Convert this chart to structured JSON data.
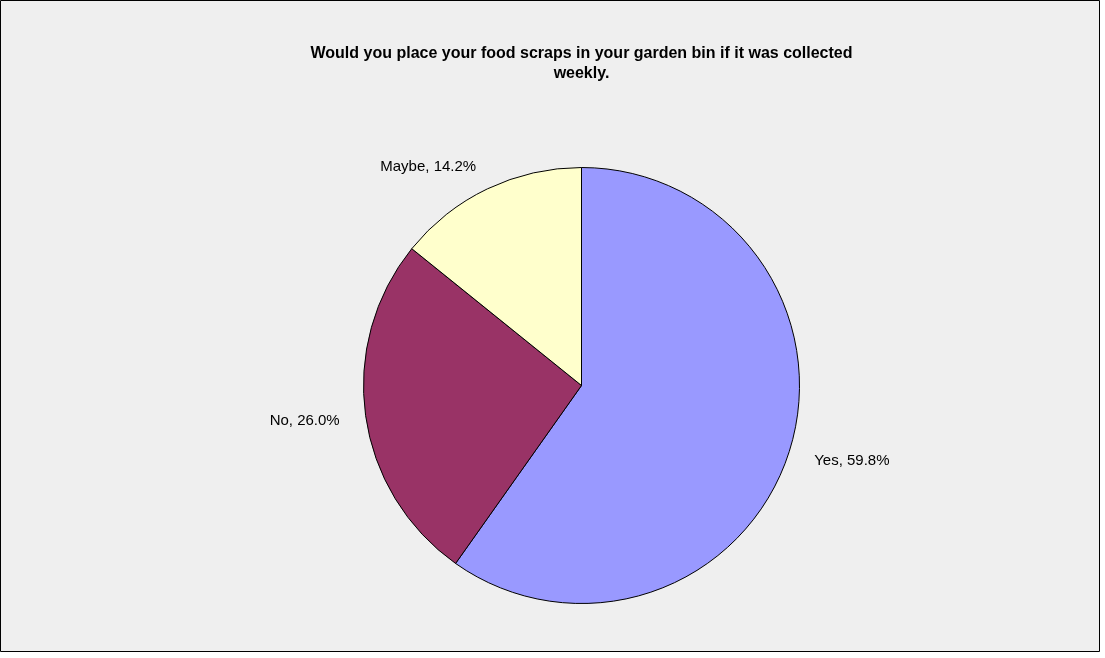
{
  "chart_data": {
    "type": "pie",
    "title": "Would you place your food scraps in your garden bin if it was collected weekly.",
    "categories": [
      "Yes",
      "No",
      "Maybe"
    ],
    "values": [
      59.8,
      26.0,
      14.2
    ],
    "colors": [
      "#9999ff",
      "#993366",
      "#ffffcc"
    ],
    "value_labels": [
      "59.8%",
      "26.0%",
      "14.2%"
    ]
  }
}
